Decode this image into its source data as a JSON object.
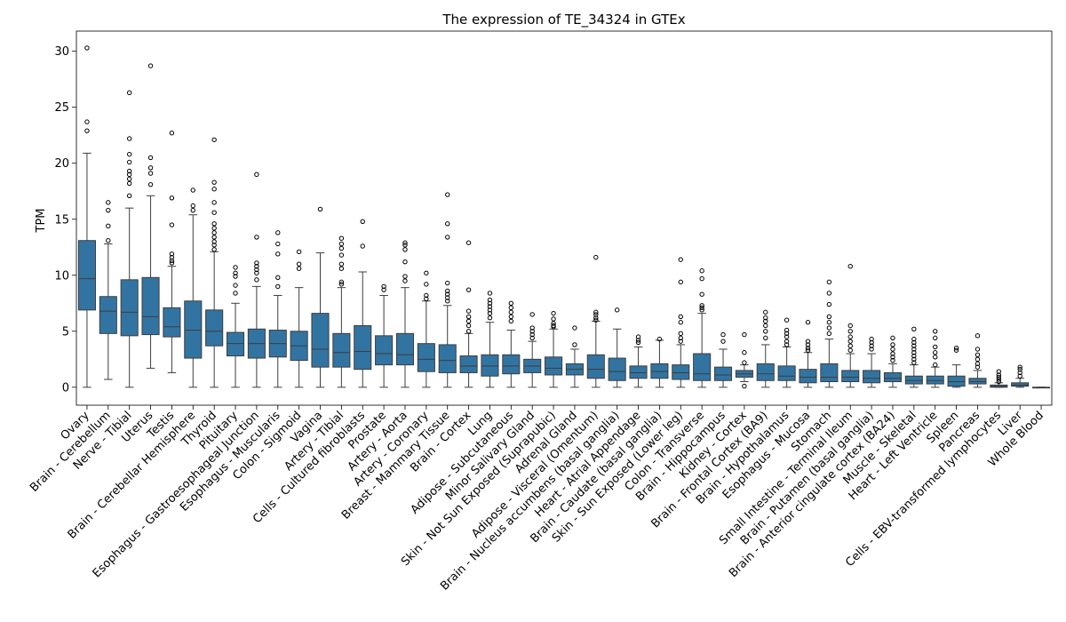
{
  "chart_data": {
    "type": "box",
    "title": "The expression of TE_34324 in GTEx",
    "xlabel": "",
    "ylabel": "TPM",
    "ylim": [
      -1.6,
      31.8
    ],
    "yticks": [
      0,
      5,
      10,
      15,
      20,
      25,
      30
    ],
    "grid": false,
    "box_color": "#3274a1",
    "categories": [
      "Ovary",
      "Brain - Cerebellum",
      "Nerve - Tibial",
      "Uterus",
      "Testis",
      "Brain - Cerebellar Hemisphere",
      "Thyroid",
      "Pituitary",
      "Esophagus - Gastroesophageal Junction",
      "Esophagus - Muscularis",
      "Colon - Sigmoid",
      "Vagina",
      "Artery - Tibial",
      "Cells - Cultured fibroblasts",
      "Prostate",
      "Artery - Aorta",
      "Artery - Coronary",
      "Breast - Mammary Tissue",
      "Brain - Cortex",
      "Lung",
      "Adipose - Subcutaneous",
      "Minor Salivary Gland",
      "Skin - Not Sun Exposed (Suprapubic)",
      "Adrenal Gland",
      "Adipose - Visceral (Omentum)",
      "Brain - Nucleus accumbens (basal ganglia)",
      "Heart - Atrial Appendage",
      "Brain - Caudate (basal ganglia)",
      "Skin - Sun Exposed (Lower leg)",
      "Colon - Transverse",
      "Brain - Hippocampus",
      "Kidney - Cortex",
      "Brain - Frontal Cortex (BA9)",
      "Brain - Hypothalamus",
      "Esophagus - Mucosa",
      "Stomach",
      "Small Intestine - Terminal Ileum",
      "Brain - Putamen (basal ganglia)",
      "Brain - Anterior cingulate cortex (BA24)",
      "Muscle - Skeletal",
      "Heart - Left Ventricle",
      "Spleen",
      "Pancreas",
      "Cells - EBV-transformed lymphocytes",
      "Liver",
      "Whole Blood"
    ],
    "boxes": [
      {
        "min": 0,
        "q1": 6.9,
        "median": 9.7,
        "q3": 13.1,
        "max": 20.9,
        "outliers": [
          22.9,
          23.7,
          30.3
        ]
      },
      {
        "min": 0.7,
        "q1": 4.8,
        "median": 6.8,
        "q3": 8.1,
        "max": 12.8,
        "outliers": [
          13.1,
          14.4,
          15.8,
          16.5
        ]
      },
      {
        "min": 0,
        "q1": 4.6,
        "median": 6.7,
        "q3": 9.6,
        "max": 16.0,
        "outliers": [
          17.1,
          18.2,
          18.6,
          19.0,
          19.3,
          20.1,
          20.8,
          22.2,
          26.3
        ]
      },
      {
        "min": 1.7,
        "q1": 4.7,
        "median": 6.3,
        "q3": 9.8,
        "max": 17.1,
        "outliers": [
          18.1,
          19.1,
          19.6,
          20.5,
          28.7
        ]
      },
      {
        "min": 1.3,
        "q1": 4.5,
        "median": 5.4,
        "q3": 7.1,
        "max": 10.8,
        "outliers": [
          11.1,
          11.3,
          11.6,
          11.9,
          14.5,
          16.9,
          22.7
        ]
      },
      {
        "min": 0,
        "q1": 2.6,
        "median": 5.1,
        "q3": 7.7,
        "max": 15.4,
        "outliers": [
          15.8,
          16.2,
          17.6
        ]
      },
      {
        "min": 0,
        "q1": 3.7,
        "median": 5.0,
        "q3": 6.9,
        "max": 12.1,
        "outliers": [
          12.3,
          12.7,
          13.0,
          13.4,
          13.8,
          14.2,
          14.6,
          15.6,
          16.5,
          17.7,
          18.3,
          22.1
        ]
      },
      {
        "min": 0,
        "q1": 2.8,
        "median": 3.9,
        "q3": 4.9,
        "max": 7.5,
        "outliers": [
          8.4,
          9.1,
          9.9,
          10.2,
          10.7
        ]
      },
      {
        "min": 0,
        "q1": 2.6,
        "median": 3.9,
        "q3": 5.2,
        "max": 9.0,
        "outliers": [
          9.6,
          10.2,
          10.5,
          10.8,
          11.1,
          13.4,
          19.0
        ]
      },
      {
        "min": 0,
        "q1": 2.7,
        "median": 3.9,
        "q3": 5.1,
        "max": 8.2,
        "outliers": [
          9.0,
          9.8,
          11.9,
          12.8,
          13.8
        ]
      },
      {
        "min": 0,
        "q1": 2.4,
        "median": 3.7,
        "q3": 5.0,
        "max": 8.9,
        "outliers": [
          10.6,
          11.0,
          12.1
        ]
      },
      {
        "min": 0,
        "q1": 1.8,
        "median": 3.4,
        "q3": 6.6,
        "max": 12.0,
        "outliers": [
          15.9
        ]
      },
      {
        "min": 0,
        "q1": 1.8,
        "median": 3.1,
        "q3": 4.8,
        "max": 8.9,
        "outliers": [
          9.2,
          9.4,
          10.6,
          11.0,
          11.8,
          12.4,
          12.8,
          13.3
        ]
      },
      {
        "min": 0,
        "q1": 1.6,
        "median": 3.2,
        "q3": 5.5,
        "max": 10.3,
        "outliers": [
          12.6,
          14.8
        ]
      },
      {
        "min": 0,
        "q1": 2.0,
        "median": 3.0,
        "q3": 4.6,
        "max": 8.2,
        "outliers": [
          8.7,
          9.0
        ]
      },
      {
        "min": 0,
        "q1": 2.0,
        "median": 2.9,
        "q3": 4.8,
        "max": 8.9,
        "outliers": [
          9.5,
          9.9,
          11.2,
          12.3,
          12.7,
          12.9
        ]
      },
      {
        "min": 0,
        "q1": 1.4,
        "median": 2.5,
        "q3": 3.9,
        "max": 7.7,
        "outliers": [
          7.9,
          8.2,
          9.2,
          10.2
        ]
      },
      {
        "min": 0,
        "q1": 1.3,
        "median": 2.4,
        "q3": 3.8,
        "max": 7.3,
        "outliers": [
          7.7,
          8.0,
          8.3,
          8.6,
          9.3,
          13.4,
          14.6,
          17.2
        ]
      },
      {
        "min": 0,
        "q1": 1.3,
        "median": 1.9,
        "q3": 2.8,
        "max": 4.8,
        "outliers": [
          5.0,
          5.5,
          5.9,
          6.3,
          6.8,
          8.7,
          12.9
        ]
      },
      {
        "min": 0,
        "q1": 1.0,
        "median": 1.9,
        "q3": 2.9,
        "max": 5.8,
        "outliers": [
          6.2,
          6.6,
          6.9,
          7.2,
          7.5,
          7.8,
          8.4
        ]
      },
      {
        "min": 0,
        "q1": 1.2,
        "median": 1.9,
        "q3": 2.9,
        "max": 5.1,
        "outliers": [
          5.9,
          6.3,
          6.7,
          7.1,
          7.5
        ]
      },
      {
        "min": 0,
        "q1": 1.3,
        "median": 1.9,
        "q3": 2.5,
        "max": 4.1,
        "outliers": [
          4.4,
          4.7,
          5.0,
          5.3,
          6.5
        ]
      },
      {
        "min": 0,
        "q1": 1.1,
        "median": 1.7,
        "q3": 2.7,
        "max": 5.2,
        "outliers": [
          5.4,
          5.5,
          5.7,
          6.1,
          6.6
        ]
      },
      {
        "min": 0,
        "q1": 1.1,
        "median": 1.6,
        "q3": 2.1,
        "max": 3.4,
        "outliers": [
          3.8,
          5.3
        ]
      },
      {
        "min": 0,
        "q1": 0.8,
        "median": 1.6,
        "q3": 2.9,
        "max": 5.9,
        "outliers": [
          6.0,
          6.2,
          6.5,
          6.7,
          11.6
        ]
      },
      {
        "min": 0,
        "q1": 0.6,
        "median": 1.4,
        "q3": 2.6,
        "max": 5.2,
        "outliers": [
          6.9
        ]
      },
      {
        "min": 0,
        "q1": 0.8,
        "median": 1.3,
        "q3": 1.9,
        "max": 3.6,
        "outliers": [
          4.0,
          4.2,
          4.5
        ]
      },
      {
        "min": 0,
        "q1": 0.8,
        "median": 1.4,
        "q3": 2.1,
        "max": 4.2,
        "outliers": [
          4.3
        ]
      },
      {
        "min": 0,
        "q1": 0.7,
        "median": 1.3,
        "q3": 2.0,
        "max": 3.8,
        "outliers": [
          4.1,
          4.4,
          4.8,
          5.8,
          6.3,
          9.4,
          11.4
        ]
      },
      {
        "min": 0,
        "q1": 0.6,
        "median": 1.2,
        "q3": 3.0,
        "max": 6.6,
        "outliers": [
          6.9,
          7.1,
          7.3,
          8.3,
          9.7,
          10.4
        ]
      },
      {
        "min": 0,
        "q1": 0.6,
        "median": 1.1,
        "q3": 1.8,
        "max": 3.4,
        "outliers": [
          4.1,
          4.7
        ]
      },
      {
        "min": 0.5,
        "q1": 0.9,
        "median": 1.2,
        "q3": 1.5,
        "max": 2.0,
        "outliers": [
          0.1,
          2.2,
          3.1,
          4.7
        ]
      },
      {
        "min": 0,
        "q1": 0.6,
        "median": 1.2,
        "q3": 2.1,
        "max": 3.8,
        "outliers": [
          4.4,
          5.0,
          5.5,
          5.9,
          6.2,
          6.7
        ]
      },
      {
        "min": 0,
        "q1": 0.6,
        "median": 1.0,
        "q3": 1.9,
        "max": 3.6,
        "outliers": [
          3.8,
          4.1,
          4.5,
          4.8,
          5.1,
          6.0
        ]
      },
      {
        "min": 0,
        "q1": 0.4,
        "median": 0.9,
        "q3": 1.6,
        "max": 3.1,
        "outliers": [
          3.3,
          3.5,
          3.8,
          4.1,
          5.8
        ]
      },
      {
        "min": 0,
        "q1": 0.5,
        "median": 0.9,
        "q3": 2.1,
        "max": 4.3,
        "outliers": [
          4.8,
          5.3,
          5.8,
          6.3,
          7.4,
          8.4,
          9.4
        ]
      },
      {
        "min": 0,
        "q1": 0.5,
        "median": 0.9,
        "q3": 1.5,
        "max": 3.0,
        "outliers": [
          3.3,
          3.7,
          4.1,
          4.5,
          5.0,
          5.5,
          10.8
        ]
      },
      {
        "min": 0,
        "q1": 0.4,
        "median": 0.8,
        "q3": 1.5,
        "max": 3.0,
        "outliers": [
          3.4,
          3.7,
          4.0,
          4.3
        ]
      },
      {
        "min": 0,
        "q1": 0.5,
        "median": 0.8,
        "q3": 1.3,
        "max": 2.1,
        "outliers": [
          2.4,
          2.7,
          3.0,
          3.4,
          3.8,
          4.4
        ]
      },
      {
        "min": 0,
        "q1": 0.3,
        "median": 0.6,
        "q3": 1.0,
        "max": 2.0,
        "outliers": [
          2.2,
          2.5,
          2.8,
          3.1,
          3.4,
          3.7,
          4.0,
          4.3,
          5.2
        ]
      },
      {
        "min": 0,
        "q1": 0.3,
        "median": 0.6,
        "q3": 1.0,
        "max": 1.8,
        "outliers": [
          2.0,
          2.7,
          3.1,
          3.6,
          4.4,
          5.0
        ]
      },
      {
        "min": 0,
        "q1": 0.1,
        "median": 0.5,
        "q3": 1.0,
        "max": 2.0,
        "outliers": [
          3.3,
          3.5
        ]
      },
      {
        "min": 0,
        "q1": 0.3,
        "median": 0.5,
        "q3": 0.8,
        "max": 1.5,
        "outliers": [
          1.8,
          2.1,
          2.5,
          2.9,
          3.4,
          4.6
        ]
      },
      {
        "min": 0,
        "q1": 0.0,
        "median": 0.1,
        "q3": 0.2,
        "max": 0.4,
        "outliers": [
          0.5,
          0.7,
          0.9,
          1.1,
          1.4
        ]
      },
      {
        "min": 0,
        "q1": 0.1,
        "median": 0.2,
        "q3": 0.4,
        "max": 0.8,
        "outliers": [
          1.0,
          1.3,
          1.6,
          1.8
        ]
      },
      {
        "min": 0,
        "q1": 0.0,
        "median": 0.0,
        "q3": 0.0,
        "max": 0.0,
        "outliers": []
      }
    ]
  }
}
